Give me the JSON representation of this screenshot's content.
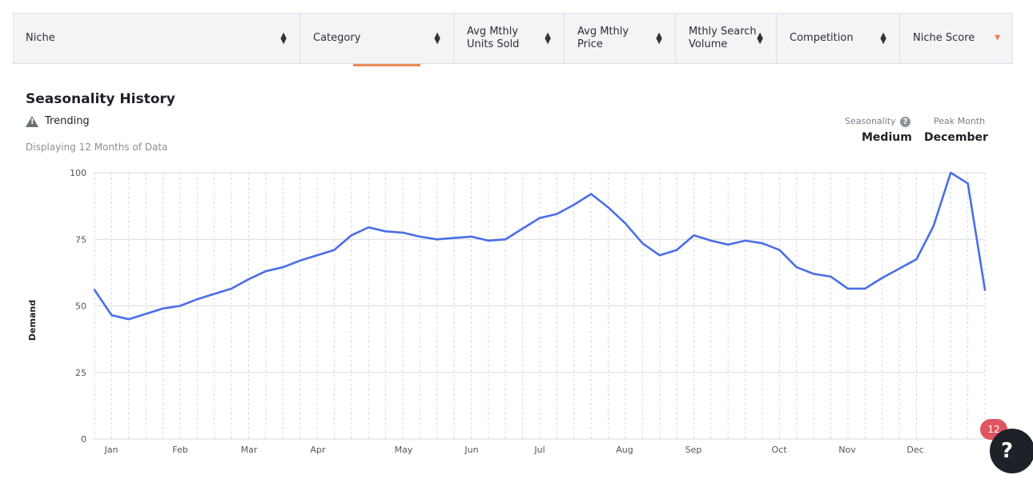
{
  "columns": [
    {
      "label": "Niche",
      "sort": "both"
    },
    {
      "label": "Category",
      "sort": "both"
    },
    {
      "label": "Avg Mthly\nUnits Sold",
      "sort": "both"
    },
    {
      "label": "Avg Mthly\nPrice",
      "sort": "both"
    },
    {
      "label": "Mthly Search\nVolume",
      "sort": "both"
    },
    {
      "label": "Competition",
      "sort": "both"
    },
    {
      "label": "Niche Score",
      "sort": "desc"
    }
  ],
  "section": {
    "title": "Seasonality History",
    "trend_label": "Trending",
    "subtitle": "Displaying 12 Months of Data",
    "seasonality_label": "Seasonality",
    "seasonality_value": "Medium",
    "peak_label": "Peak Month",
    "peak_value": "December"
  },
  "badge_count": "12",
  "help_label": "?",
  "colors": {
    "line": "#4a6ee8",
    "accent": "#ee8a5b",
    "badge": "#e05561"
  },
  "chart_data": {
    "type": "line",
    "ylabel": "Demand",
    "xlabel": "",
    "ylim": [
      0,
      100
    ],
    "yticks": [
      0,
      25,
      50,
      75,
      100
    ],
    "xticks": [
      "Jan",
      "Feb",
      "Mar",
      "Apr",
      "May",
      "Jun",
      "Jul",
      "Aug",
      "Sep",
      "Oct",
      "Nov",
      "Dec"
    ],
    "grid": true,
    "series": [
      {
        "values": [
          56,
          46.5,
          45,
          47,
          49,
          50,
          52.5,
          54.5,
          56.5,
          60,
          63,
          64.5,
          67,
          69,
          71,
          76.5,
          79.5,
          78,
          77.5,
          76,
          75,
          75.5,
          76,
          74.5,
          75,
          79,
          83,
          84.5,
          88,
          92,
          87,
          81,
          73.5,
          69,
          71,
          76.5,
          74.5,
          73,
          74.5,
          73.5,
          71,
          64.5,
          62,
          61,
          56.5,
          56.5,
          60.5,
          64,
          67.5,
          80,
          100,
          96,
          56
        ]
      }
    ]
  }
}
